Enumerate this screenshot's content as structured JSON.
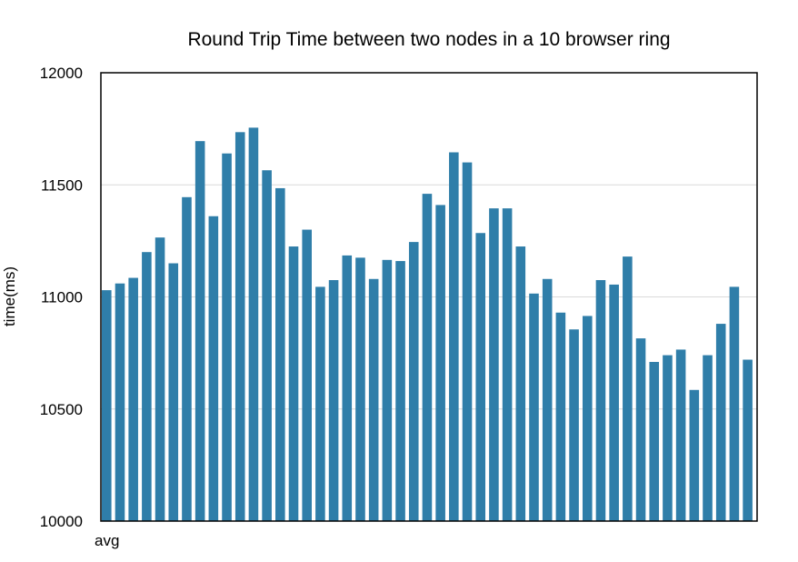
{
  "chart_data": {
    "type": "bar",
    "title": "Round Trip Time between two nodes in a 10 browser ring",
    "xlabel": "",
    "ylabel": "time(ms)",
    "x_tick_label": "avg",
    "ylim": [
      10000,
      12000
    ],
    "y_ticks": [
      "10000",
      "10500",
      "11000",
      "11500",
      "12000"
    ],
    "grid": true,
    "bar_color": "#2f7ea9",
    "series": [
      {
        "values": [
          11030,
          11060,
          11085,
          11200,
          11265,
          11150,
          11445,
          11695,
          11360,
          11640,
          11735,
          11755,
          11565,
          11485,
          11225,
          11300,
          11045,
          11075,
          11185,
          11175,
          11080,
          11165,
          11160,
          11245,
          11460,
          11410,
          11645,
          11600,
          11285,
          11395,
          11395,
          11225,
          11015,
          11080,
          10930,
          10855,
          10915,
          11075,
          11055,
          11180,
          10815,
          10710,
          10740,
          10765,
          10585,
          10740,
          10880,
          11045,
          10720
        ]
      }
    ]
  }
}
